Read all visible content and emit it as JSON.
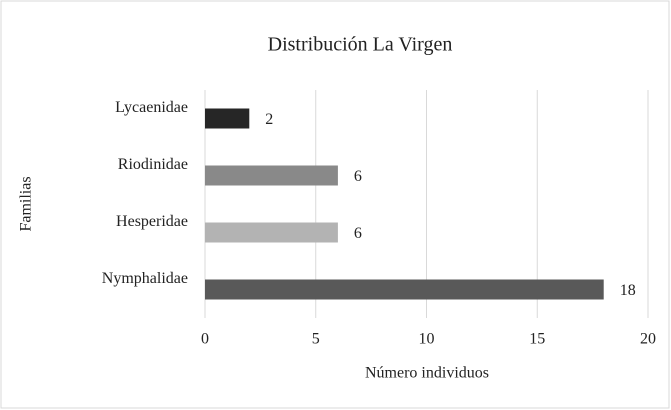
{
  "chart_data": {
    "type": "bar",
    "orientation": "horizontal",
    "title": "Distribución La Virgen",
    "x_label": "Número individuos",
    "y_label": "Familias",
    "categories": [
      "Lycaenidae",
      "Riodinidae",
      "Hesperidae",
      "Nymphalidae"
    ],
    "values": [
      2,
      6,
      6,
      18
    ],
    "colors": [
      "#262626",
      "#898989",
      "#b3b3b3",
      "#595959"
    ],
    "xlim": [
      0,
      20
    ],
    "xticks": [
      0,
      5,
      10,
      15,
      20
    ],
    "grid": true
  }
}
